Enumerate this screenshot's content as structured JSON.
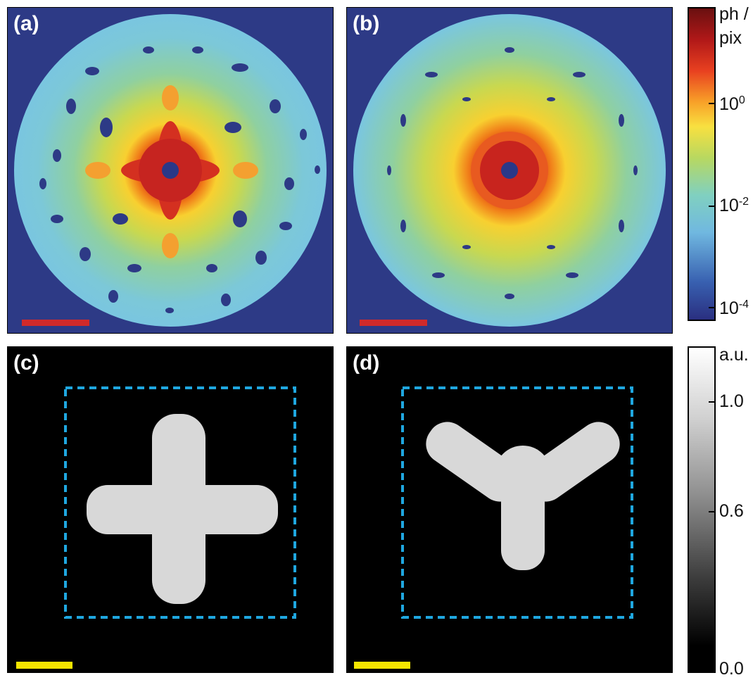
{
  "panels": [
    {
      "id": "a",
      "label": "(a)"
    },
    {
      "id": "b",
      "label": "(b)"
    },
    {
      "id": "c",
      "label": "(c)"
    },
    {
      "id": "d",
      "label": "(d)"
    }
  ],
  "colorbar_top": {
    "title_line1": "ph /",
    "title_line2": "pix",
    "ticks": [
      {
        "base": "10",
        "exp": "0"
      },
      {
        "base": "10",
        "exp": "-2"
      },
      {
        "base": "10",
        "exp": "-4"
      }
    ],
    "scale": "log"
  },
  "colorbar_bottom": {
    "title": "a.u.",
    "ticks": [
      "1.0",
      "0.6",
      "0.0"
    ],
    "scale": "linear"
  },
  "colors": {
    "background_dark_blue": "#2d3a86",
    "scale_bar_red": "#d12a2a",
    "scale_bar_yellow": "#f5e500",
    "dashed_box": "#1fa7e0"
  }
}
